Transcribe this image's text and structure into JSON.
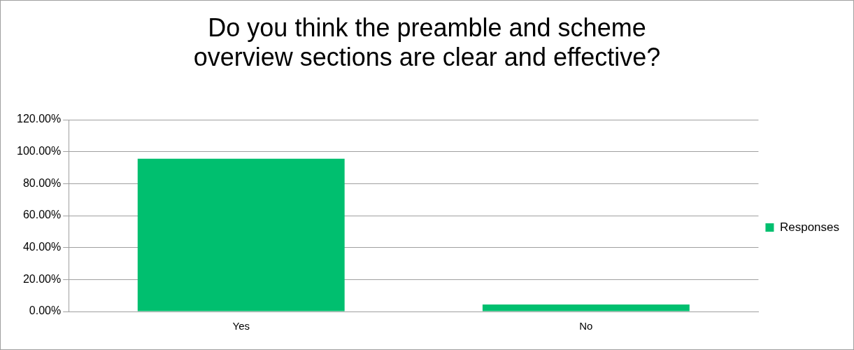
{
  "chart_data": {
    "type": "bar",
    "title": "Do you think the preamble and scheme overview sections are clear and effective?",
    "categories": [
      "Yes",
      "No"
    ],
    "series": [
      {
        "name": "Responses",
        "color": "#00bf6f",
        "values": [
          95.6,
          4.4
        ]
      }
    ],
    "ylim": [
      0,
      120
    ],
    "yticks": [
      {
        "value": 0,
        "label": "0.00%"
      },
      {
        "value": 20,
        "label": "20.00%"
      },
      {
        "value": 40,
        "label": "40.00%"
      },
      {
        "value": 60,
        "label": "60.00%"
      },
      {
        "value": 80,
        "label": "80.00%"
      },
      {
        "value": 100,
        "label": "100.00%"
      },
      {
        "value": 120,
        "label": "120.00%"
      }
    ],
    "grid": "y",
    "legend": "right"
  }
}
